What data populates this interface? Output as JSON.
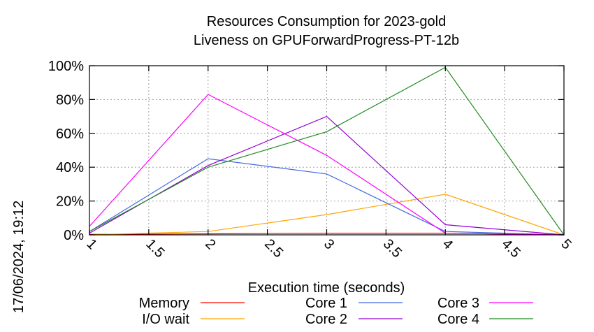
{
  "chart_data": {
    "type": "line",
    "title": "Resources Consumption for 2023-gold",
    "subtitle": "Liveness on GPUForwardProgress-PT-12b",
    "xlabel": "Execution time (seconds)",
    "ylabel": "",
    "timestamp": "17/06/2024, 19:12",
    "x_ticks": [
      "1",
      "1.5",
      "2",
      "2.5",
      "3",
      "3.5",
      "4",
      "4.5",
      "5"
    ],
    "y_ticks": [
      "0%",
      "20%",
      "40%",
      "60%",
      "80%",
      "100%"
    ],
    "xlim": [
      1,
      5
    ],
    "ylim": [
      0,
      100
    ],
    "grid": true,
    "legend_position": "bottom",
    "series": [
      {
        "name": "Memory",
        "color": "#ff0000",
        "x": [
          1,
          2,
          3,
          4,
          5
        ],
        "y": [
          0.3,
          0.6,
          1.0,
          1.0,
          0
        ]
      },
      {
        "name": "I/O wait",
        "color": "#ffa500",
        "x": [
          1,
          2,
          3,
          4,
          5
        ],
        "y": [
          0,
          2,
          12,
          24,
          0
        ]
      },
      {
        "name": "Core 1",
        "color": "#4169e1",
        "x": [
          1,
          2,
          3,
          4,
          5
        ],
        "y": [
          2,
          45,
          36,
          2,
          0
        ]
      },
      {
        "name": "Core 2",
        "color": "#9400d3",
        "x": [
          1,
          2,
          3,
          4,
          5
        ],
        "y": [
          1,
          41,
          70,
          6,
          0
        ]
      },
      {
        "name": "Core 3",
        "color": "#ff00ff",
        "x": [
          1,
          2,
          3,
          4,
          5
        ],
        "y": [
          5,
          83,
          47,
          1,
          0
        ]
      },
      {
        "name": "Core 4",
        "color": "#228b22",
        "x": [
          1,
          2,
          3,
          4,
          5
        ],
        "y": [
          2,
          40,
          61,
          99,
          0
        ]
      }
    ]
  }
}
